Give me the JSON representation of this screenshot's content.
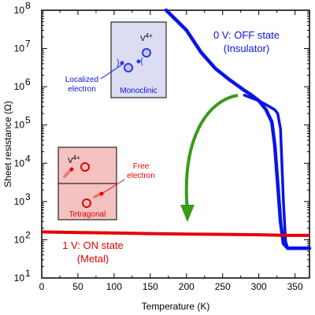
{
  "chart_data": {
    "type": "line",
    "xlabel": "Temperature (K)",
    "ylabel": "Sheet resistance (Ω)",
    "xlim": [
      0,
      370
    ],
    "ylim_log10": [
      1,
      8
    ],
    "y_scale": "log",
    "grid": false,
    "x_ticks": [
      "0",
      "50",
      "100",
      "150",
      "200",
      "250",
      "300",
      "350"
    ],
    "x_tick_values": [
      0,
      50,
      100,
      150,
      200,
      250,
      300,
      350
    ],
    "y_tick_exponents": [
      1,
      2,
      3,
      4,
      5,
      6,
      7,
      8
    ],
    "y_tick_base": "10",
    "series": [
      {
        "name": "0 V: OFF state (Insulator)",
        "color": "#0a14e6",
        "loops": [
          {
            "x": [
              172,
              200,
              220,
              240,
              260,
              280,
              290,
              300,
              310,
              318,
              322,
              326,
              330,
              334,
              340,
              355,
              370
            ],
            "y": [
              100000000,
              30000000,
              8000000,
              3000000,
              1500000,
              800000,
              600000,
              430000,
              250000,
              120000,
              30000,
              3000,
              300,
              80,
              60,
              60,
              60
            ]
          },
          {
            "x": [
              280,
              300,
              315,
              322,
              326,
              330,
              334,
              337,
              340
            ],
            "y": [
              600000,
              430000,
              300000,
              250000,
              200000,
              80000,
              1000,
              90,
              60
            ]
          }
        ]
      },
      {
        "name": "1 V: ON state (Metal)",
        "color": "#e60000",
        "x": [
          0,
          50,
          100,
          150,
          200,
          250,
          300,
          340,
          370
        ],
        "y": [
          160,
          155,
          150,
          145,
          140,
          138,
          135,
          130,
          130
        ]
      }
    ],
    "annotations": {
      "off_line1": "0 V: OFF state",
      "off_line2": "(Insulator)",
      "on_line1": "1 V: ON state",
      "on_line2": "(Metal)"
    },
    "insets": {
      "monoclinic": {
        "phase": "Monoclinic",
        "ion": "V",
        "charge": "4+",
        "callout_line1": "Localized",
        "callout_line2": "electron"
      },
      "tetragonal": {
        "phase": "Tetragonal",
        "ion": "V",
        "charge": "4+",
        "callout_line1": "Free",
        "callout_line2": "electron"
      }
    },
    "arrow_color": "#3a9a1a"
  }
}
